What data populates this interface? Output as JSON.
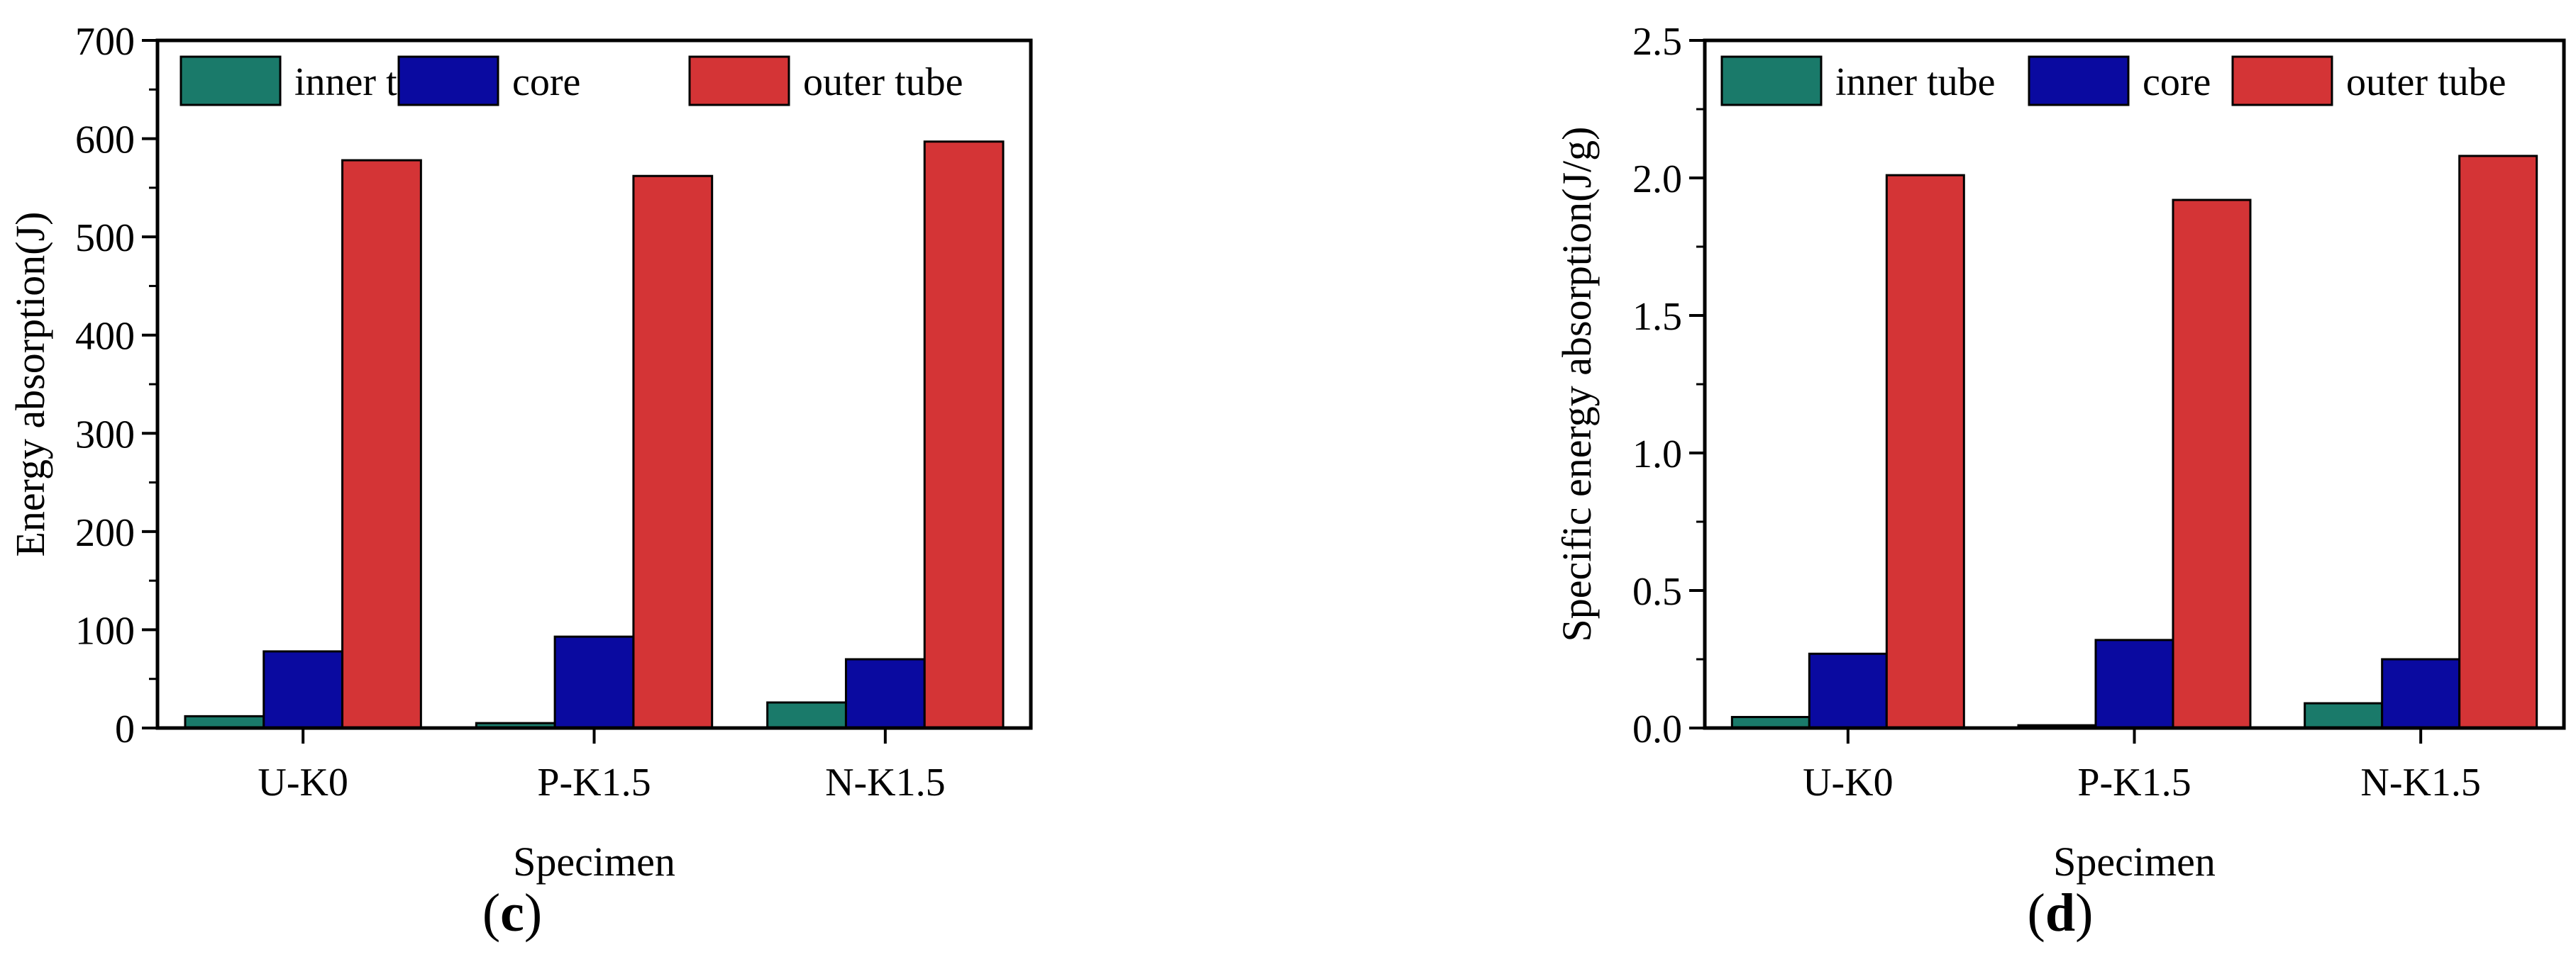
{
  "colors": {
    "inner tube": "#1a7a6a",
    "core": "#0a0aa0",
    "outer tube": "#d43436",
    "axis": "#000000"
  },
  "chart_data": [
    {
      "type": "bar",
      "panel_label": "c",
      "categories": [
        "U-K0",
        "P-K1.5",
        "N-K1.5"
      ],
      "series": [
        {
          "name": "inner tube",
          "values": [
            12,
            5,
            26
          ]
        },
        {
          "name": "core",
          "values": [
            78,
            93,
            70
          ]
        },
        {
          "name": "outer tube",
          "values": [
            578,
            562,
            597
          ]
        }
      ],
      "xlabel": "Specimen",
      "ylabel": "Energy absorption(J)",
      "ylim": [
        0,
        700
      ],
      "yticks": [
        "0",
        "100",
        "200",
        "300",
        "400",
        "500",
        "600",
        "700"
      ],
      "ytick_values": [
        0,
        100,
        200,
        300,
        400,
        500,
        600,
        700
      ],
      "legend": "top"
    },
    {
      "type": "bar",
      "panel_label": "d",
      "categories": [
        "U-K0",
        "P-K1.5",
        "N-K1.5"
      ],
      "series": [
        {
          "name": "inner tube",
          "values": [
            0.04,
            0.01,
            0.09
          ]
        },
        {
          "name": "core",
          "values": [
            0.27,
            0.32,
            0.25
          ]
        },
        {
          "name": "outer tube",
          "values": [
            2.01,
            1.92,
            2.08
          ]
        }
      ],
      "xlabel": "Specimen",
      "ylabel": "Specific energy absorption(J/g)",
      "ylim": [
        0,
        2.5
      ],
      "yticks": [
        "0.0",
        "0.5",
        "1.0",
        "1.5",
        "2.0",
        "2.5"
      ],
      "ytick_values": [
        0,
        0.5,
        1.0,
        1.5,
        2.0,
        2.5
      ],
      "legend": "top"
    }
  ]
}
